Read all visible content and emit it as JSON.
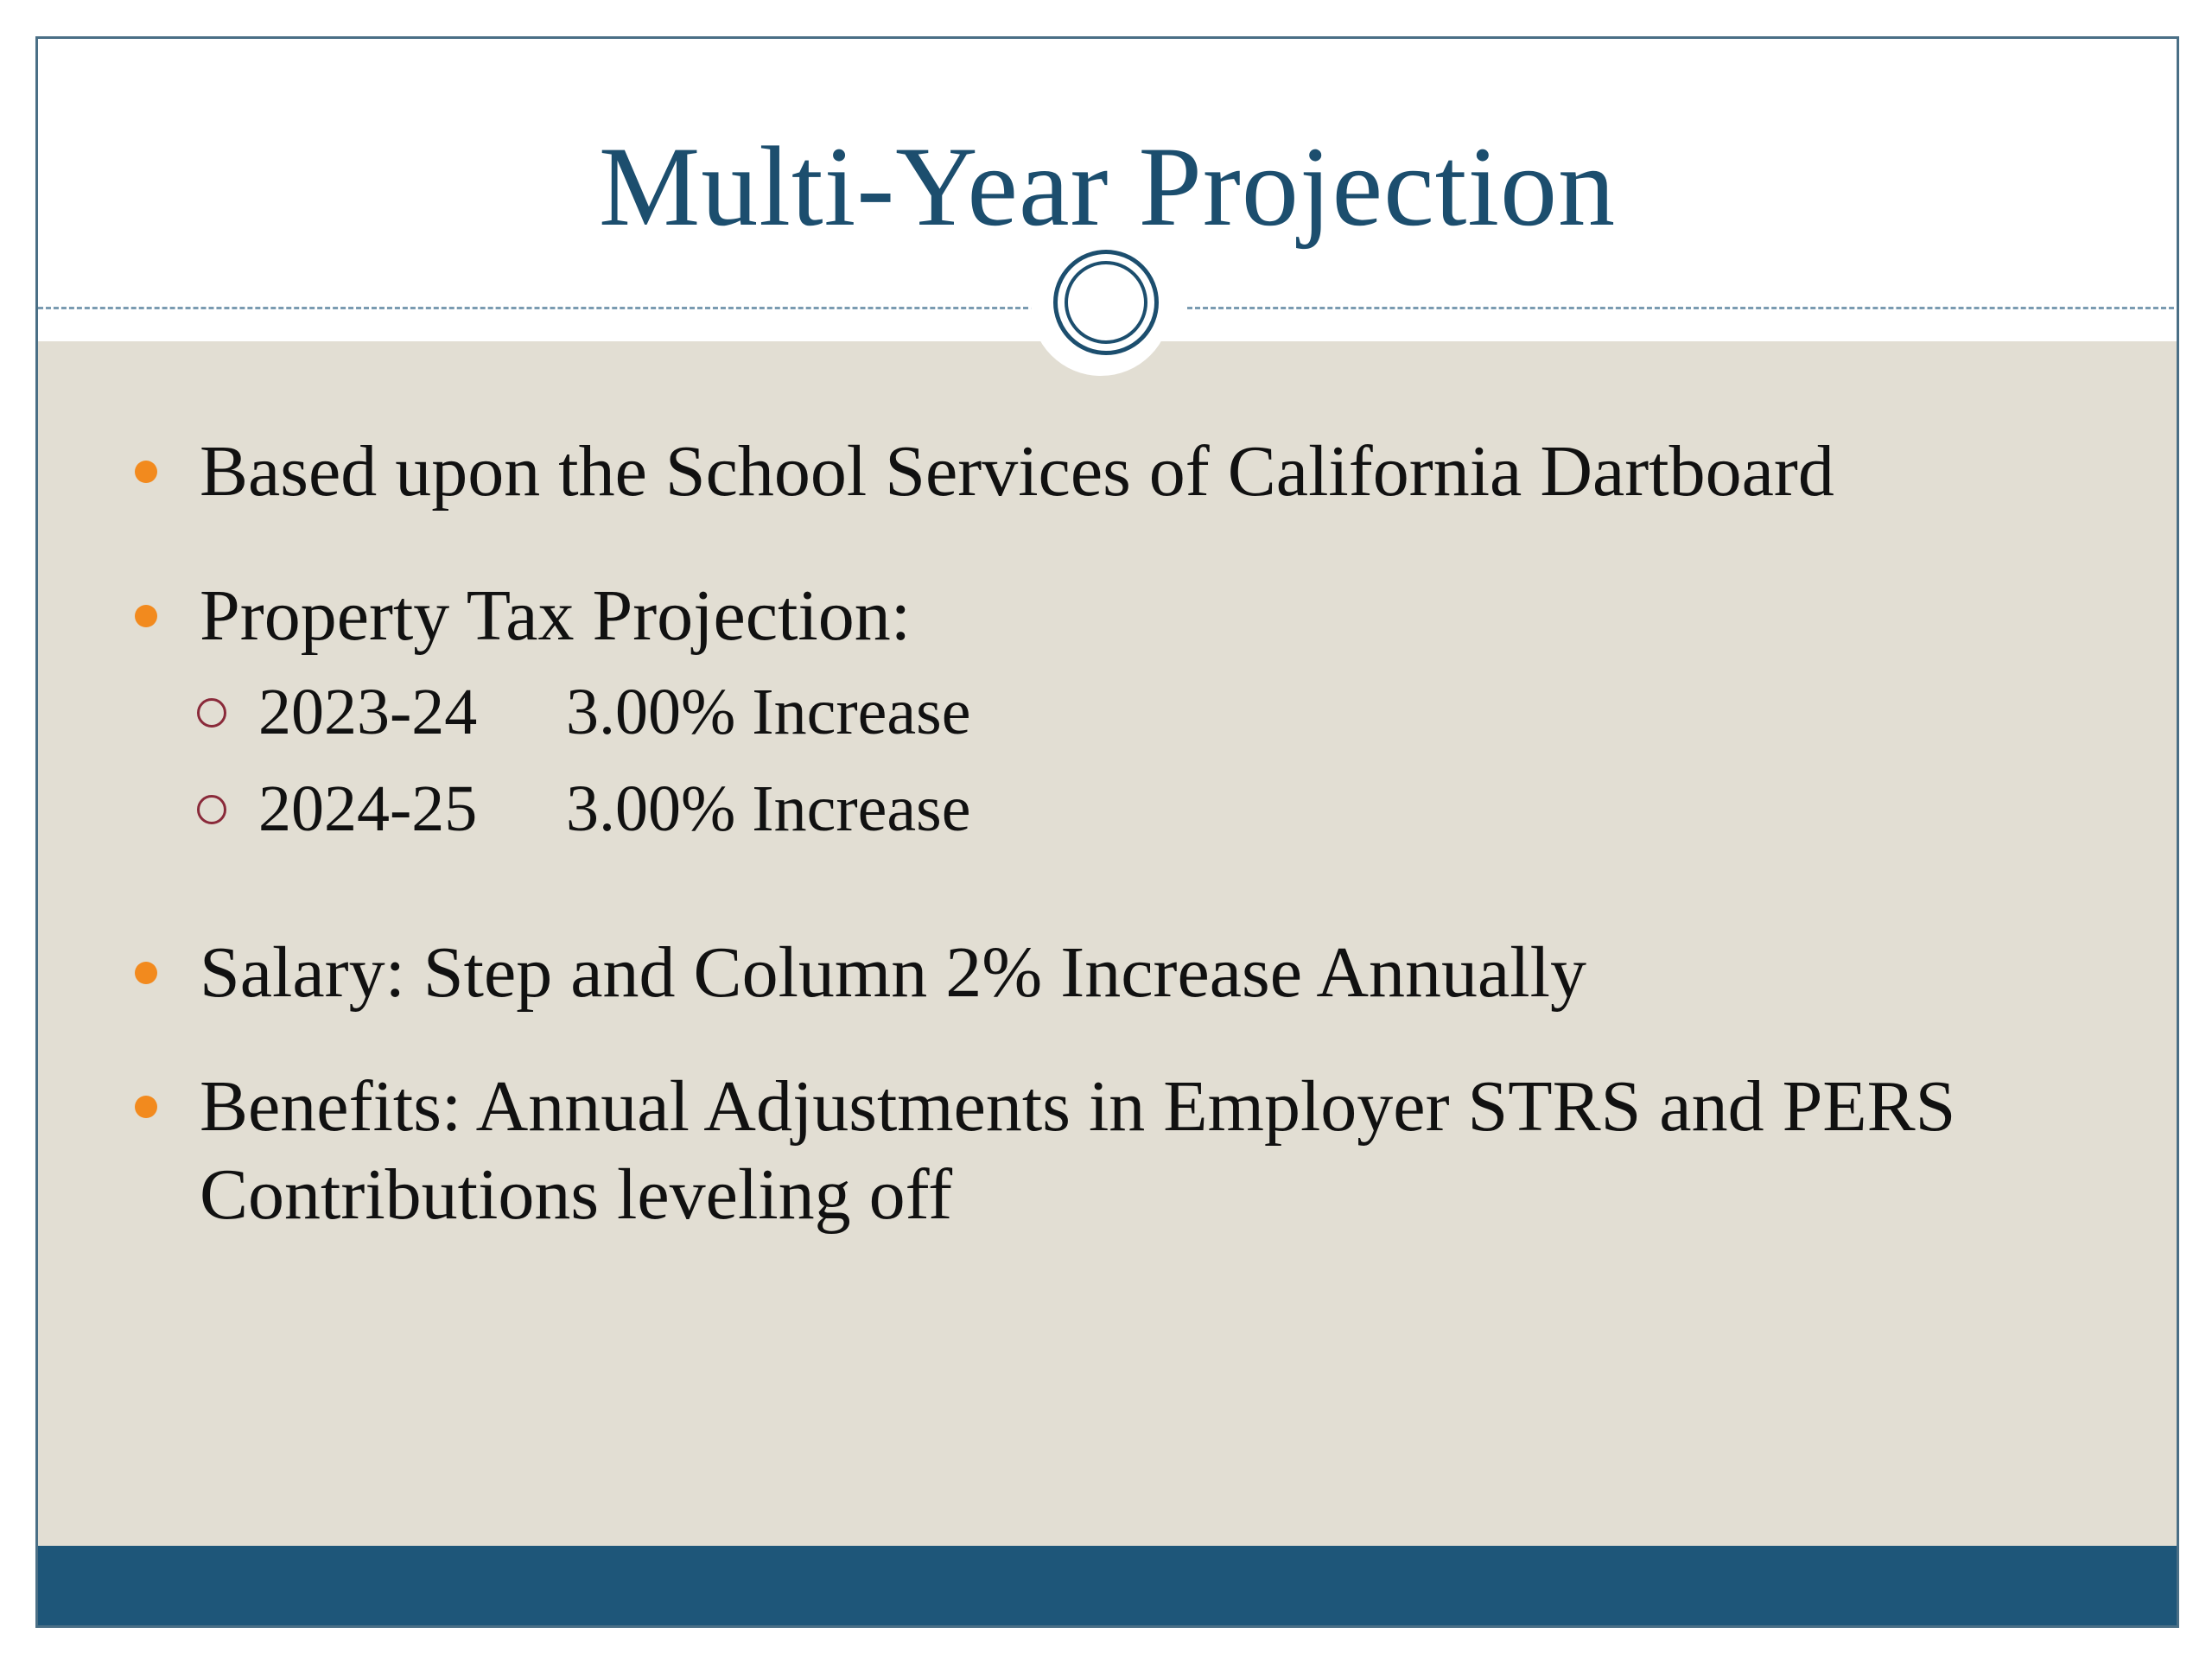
{
  "slide": {
    "title": "Multi-Year Projection",
    "colors": {
      "title": "#1c4e6e",
      "content_background": "#e2ded3",
      "bottom_band": "#1e5679",
      "bullet": "#f28a1e",
      "sub_bullet": "#8a2a3a"
    },
    "ornament_icon": "double-ring-circle-icon"
  },
  "bullets": [
    {
      "text": "Based upon the School Services of California Dartboard"
    },
    {
      "text": "Property Tax Projection:",
      "sub_items": [
        {
          "year": "2023-24",
          "value": "3.00% Increase"
        },
        {
          "year": "2024-25",
          "value": "3.00% Increase"
        }
      ]
    },
    {
      "text": "Salary: Step and Column 2% Increase Annually"
    },
    {
      "text": "Benefits:  Annual Adjustments in Employer STRS and PERS Contributions leveling off"
    }
  ]
}
